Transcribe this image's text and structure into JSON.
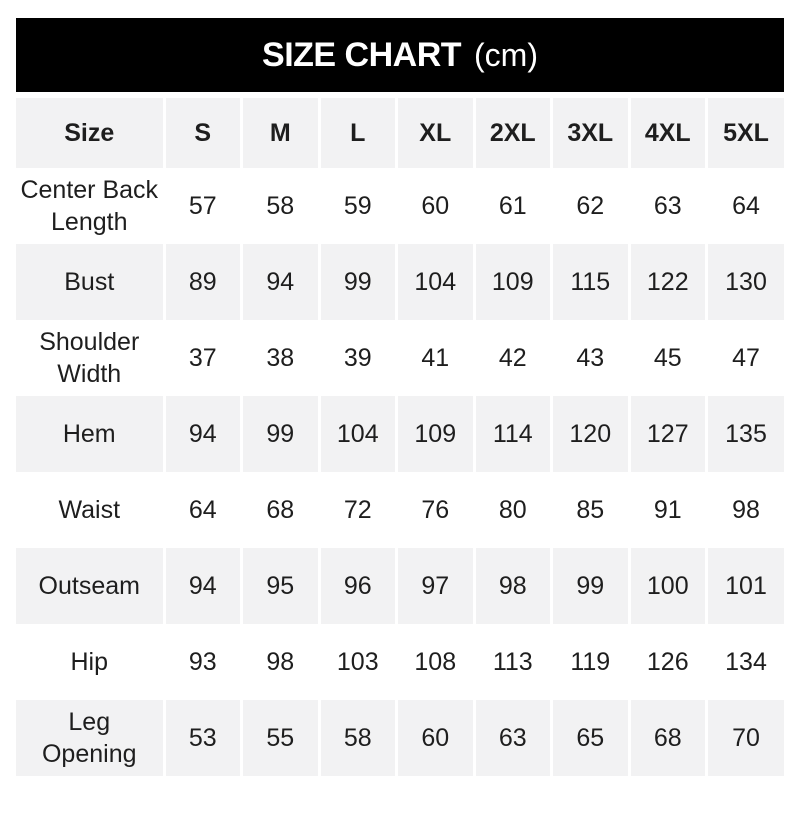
{
  "banner": {
    "title": "SIZE CHART",
    "unit": "(cm)"
  },
  "chart_data": {
    "type": "table",
    "title": "SIZE CHART (cm)",
    "unit": "cm",
    "columns": [
      "Size",
      "S",
      "M",
      "L",
      "XL",
      "2XL",
      "3XL",
      "4XL",
      "5XL"
    ],
    "rows": [
      {
        "label": "Center Back Length",
        "values": [
          57,
          58,
          59,
          60,
          61,
          62,
          63,
          64
        ]
      },
      {
        "label": "Bust",
        "values": [
          89,
          94,
          99,
          104,
          109,
          115,
          122,
          130
        ]
      },
      {
        "label": "Shoulder Width",
        "values": [
          37,
          38,
          39,
          41,
          42,
          43,
          45,
          47
        ]
      },
      {
        "label": "Hem",
        "values": [
          94,
          99,
          104,
          109,
          114,
          120,
          127,
          135
        ]
      },
      {
        "label": "Waist",
        "values": [
          64,
          68,
          72,
          76,
          80,
          85,
          91,
          98
        ]
      },
      {
        "label": "Outseam",
        "values": [
          94,
          95,
          96,
          97,
          98,
          99,
          100,
          101
        ]
      },
      {
        "label": "Hip",
        "values": [
          93,
          98,
          103,
          108,
          113,
          119,
          126,
          134
        ]
      },
      {
        "label": "Leg Opening",
        "values": [
          53,
          55,
          58,
          60,
          63,
          65,
          68,
          70
        ]
      }
    ],
    "layout": {
      "row_shading": "alternating, header and even data rows shaded",
      "grid": "white vertical dividers between columns"
    }
  },
  "colors": {
    "banner_bg": "#000000",
    "banner_text": "#ffffff",
    "row_alt_bg": "#f2f2f3",
    "divider": "#ffffff",
    "text": "#1e1e1e",
    "page_bg": "#ffffff"
  }
}
